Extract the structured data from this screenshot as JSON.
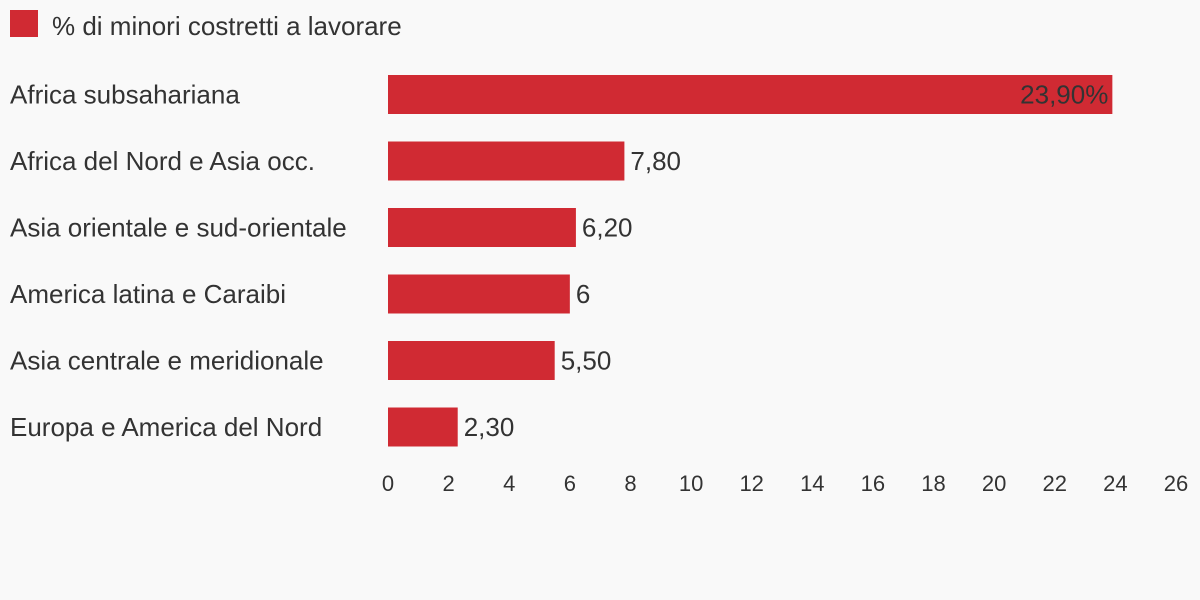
{
  "chart_data": {
    "type": "bar",
    "orientation": "horizontal",
    "legend": {
      "position": "top-left",
      "label": "% di minori costretti a lavorare"
    },
    "categories": [
      "Africa subsahariana",
      "Africa del Nord e Asia occ.",
      "Asia orientale e sud-orientale",
      "America latina e Caraibi",
      "Asia centrale e meridionale",
      "Europa e America del Nord"
    ],
    "series": [
      {
        "name": "% di minori costretti a lavorare",
        "values": [
          23.9,
          7.8,
          6.2,
          6,
          5.5,
          2.3
        ],
        "color": "#d02a33"
      }
    ],
    "data_labels": [
      "23,90%",
      "7,80",
      "6,20",
      "6",
      "5,50",
      "2,30"
    ],
    "xlim": [
      0,
      26
    ],
    "xticks": [
      "0",
      "2",
      "4",
      "6",
      "8",
      "10",
      "12",
      "14",
      "16",
      "18",
      "20",
      "22",
      "24",
      "26"
    ],
    "grid": false
  }
}
